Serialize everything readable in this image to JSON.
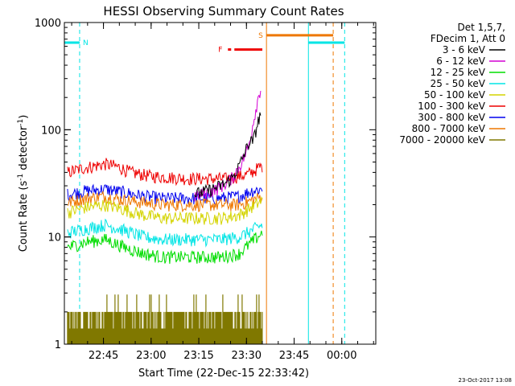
{
  "chart_data": {
    "type": "line",
    "title": "HESSI Observing Summary Count Rates",
    "xlabel": "Start Time (22-Dec-15 22:33:42)",
    "ylabel_main": "Count Rate (s",
    "ylabel_sup1": "-1",
    "ylabel_mid": " detector",
    "ylabel_sup2": "-1",
    "ylabel_end": ")",
    "footer": "23-Oct-2017 13:08",
    "x_range_minutes": [
      -1,
      97
    ],
    "ylim": [
      1,
      1000
    ],
    "yscale": "log",
    "x_ticks": [
      {
        "label": "22:45",
        "t": 11.3
      },
      {
        "label": "23:00",
        "t": 26.3
      },
      {
        "label": "23:15",
        "t": 41.3
      },
      {
        "label": "23:30",
        "t": 56.3
      },
      {
        "label": "23:45",
        "t": 71.3
      },
      {
        "label": "00:00",
        "t": 86.3
      }
    ],
    "y_ticks": [
      {
        "label": "1",
        "v": 1
      },
      {
        "label": "10",
        "v": 10
      },
      {
        "label": "100",
        "v": 100
      },
      {
        "label": "1000",
        "v": 1000
      }
    ],
    "legend": {
      "header1": "Det 1,5,7,",
      "header2": "FDecim 1, Att 0",
      "entries": [
        {
          "label": "3 - 6 keV",
          "color": "#000000"
        },
        {
          "label": "6 - 12 keV",
          "color": "#d400d4"
        },
        {
          "label": "12 - 25 keV",
          "color": "#00dd00"
        },
        {
          "label": "25 - 50 keV",
          "color": "#00e5e5"
        },
        {
          "label": "50 - 100 keV",
          "color": "#d4d400"
        },
        {
          "label": "100 - 300 keV",
          "color": "#ee0000"
        },
        {
          "label": "300 - 800 keV",
          "color": "#0000ee"
        },
        {
          "label": "800 - 7000 keV",
          "color": "#ee7700"
        },
        {
          "label": "7000 - 20000 keV",
          "color": "#807800"
        }
      ]
    },
    "series": [
      {
        "name": "100 - 300 keV",
        "color": "#ee0000",
        "points": [
          [
            0,
            40
          ],
          [
            5,
            44
          ],
          [
            12,
            48
          ],
          [
            16,
            45
          ],
          [
            20,
            40
          ],
          [
            26,
            37
          ],
          [
            32,
            36
          ],
          [
            38,
            35
          ],
          [
            44,
            35
          ],
          [
            50,
            35
          ],
          [
            56,
            38
          ],
          [
            58,
            40
          ],
          [
            60,
            44
          ],
          [
            61.3,
            46
          ]
        ]
      },
      {
        "name": "300 - 800 keV",
        "color": "#0000ee",
        "points": [
          [
            0,
            25
          ],
          [
            6,
            27
          ],
          [
            12,
            28
          ],
          [
            18,
            26
          ],
          [
            24,
            24
          ],
          [
            30,
            23
          ],
          [
            36,
            23
          ],
          [
            42,
            23
          ],
          [
            48,
            23
          ],
          [
            54,
            24
          ],
          [
            58,
            27
          ],
          [
            61.3,
            28
          ]
        ]
      },
      {
        "name": "800 - 7000 keV",
        "color": "#ee7700",
        "points": [
          [
            0,
            21
          ],
          [
            6,
            23
          ],
          [
            12,
            24
          ],
          [
            18,
            22
          ],
          [
            24,
            21
          ],
          [
            30,
            20
          ],
          [
            36,
            20
          ],
          [
            42,
            20
          ],
          [
            48,
            20
          ],
          [
            54,
            20
          ],
          [
            58,
            22
          ],
          [
            61.3,
            24
          ]
        ]
      },
      {
        "name": "50 - 100 keV",
        "color": "#d4d400",
        "points": [
          [
            0,
            17
          ],
          [
            6,
            19
          ],
          [
            12,
            20
          ],
          [
            18,
            18
          ],
          [
            24,
            16
          ],
          [
            30,
            15
          ],
          [
            36,
            15
          ],
          [
            42,
            15
          ],
          [
            48,
            15
          ],
          [
            54,
            16
          ],
          [
            58,
            19
          ],
          [
            61.3,
            22
          ]
        ]
      },
      {
        "name": "25 - 50 keV",
        "color": "#00e5e5",
        "points": [
          [
            0,
            11
          ],
          [
            6,
            12
          ],
          [
            12,
            13
          ],
          [
            18,
            11.5
          ],
          [
            24,
            10
          ],
          [
            30,
            9.5
          ],
          [
            36,
            9.5
          ],
          [
            42,
            9.5
          ],
          [
            48,
            9.5
          ],
          [
            54,
            10
          ],
          [
            58,
            11.5
          ],
          [
            61.3,
            13
          ]
        ]
      },
      {
        "name": "12 - 25 keV",
        "color": "#00dd00",
        "points": [
          [
            0,
            8
          ],
          [
            6,
            9
          ],
          [
            12,
            9.5
          ],
          [
            18,
            8
          ],
          [
            24,
            7
          ],
          [
            30,
            6.5
          ],
          [
            36,
            6.5
          ],
          [
            42,
            6.5
          ],
          [
            48,
            6.5
          ],
          [
            54,
            7
          ],
          [
            58,
            9
          ],
          [
            61.3,
            11
          ]
        ]
      },
      {
        "name": "6 - 12 keV",
        "color": "#d400d4",
        "points": [
          [
            40,
            24
          ],
          [
            44,
            26
          ],
          [
            47,
            28
          ],
          [
            50,
            32
          ],
          [
            52,
            36
          ],
          [
            54,
            45
          ],
          [
            55.5,
            55
          ],
          [
            57,
            70
          ],
          [
            58.5,
            120
          ],
          [
            60,
            200
          ],
          [
            61,
            260
          ]
        ]
      },
      {
        "name": "3 - 6 keV",
        "color": "#000000",
        "points": [
          [
            40,
            25
          ],
          [
            44,
            27
          ],
          [
            47,
            29
          ],
          [
            50,
            32
          ],
          [
            52,
            36
          ],
          [
            54,
            46
          ],
          [
            55.5,
            58
          ],
          [
            57,
            75
          ],
          [
            58.5,
            80
          ],
          [
            60,
            120
          ],
          [
            61,
            150
          ]
        ]
      }
    ],
    "bursts": {
      "name": "7000 - 20000 keV",
      "color": "#807800",
      "t_start": 0,
      "t_end": 61.3,
      "base": 1,
      "level": 2
    },
    "flags": {
      "night_label": "N",
      "saa_label": "S",
      "flare_label": "F",
      "night_segments": [
        [
          -1,
          3.8
        ],
        [
          75.8,
          87.2
        ]
      ],
      "night_level": 650,
      "saa_segment": [
        62.6,
        83.6
      ],
      "saa_level": 760,
      "flare_segment": [
        52.5,
        61.3
      ],
      "flare_level": 560,
      "solid_cyan_lines": [
        -1,
        75.8
      ],
      "dashed_cyan_lines": [
        3.8,
        87.2
      ],
      "solid_orange_line": 62.6,
      "dashed_orange_line": 83.6
    }
  }
}
